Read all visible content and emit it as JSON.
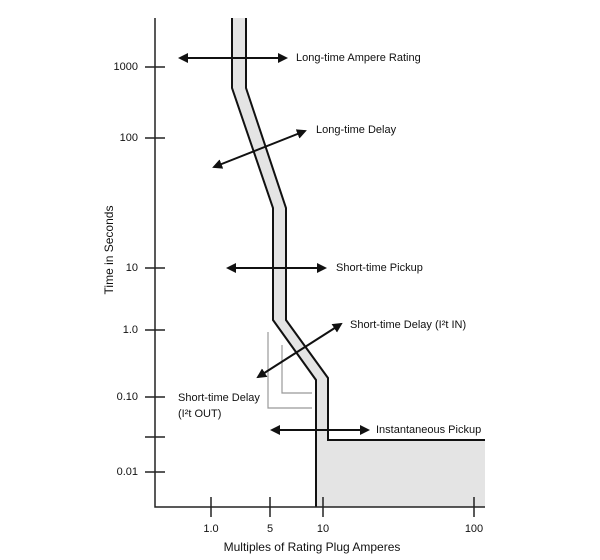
{
  "axes": {
    "y_label": "Time in Seconds",
    "x_label": "Multiples of Rating Plug Amperes",
    "y_ticks": [
      "1000",
      "100",
      "10",
      "1.0",
      "0.10",
      "0.01"
    ],
    "x_ticks": [
      "1.0",
      "5",
      "10",
      "100"
    ]
  },
  "annotations": {
    "long_time_ampere_rating": "Long-time Ampere Rating",
    "long_time_delay": "Long-time Delay",
    "short_time_pickup": "Short-time Pickup",
    "short_time_delay_in": "Short-time Delay (I²t IN)",
    "short_time_delay_out": [
      "Short-time Delay",
      "(I²t OUT)"
    ],
    "instantaneous_pickup": "Instantaneous Pickup"
  }
}
